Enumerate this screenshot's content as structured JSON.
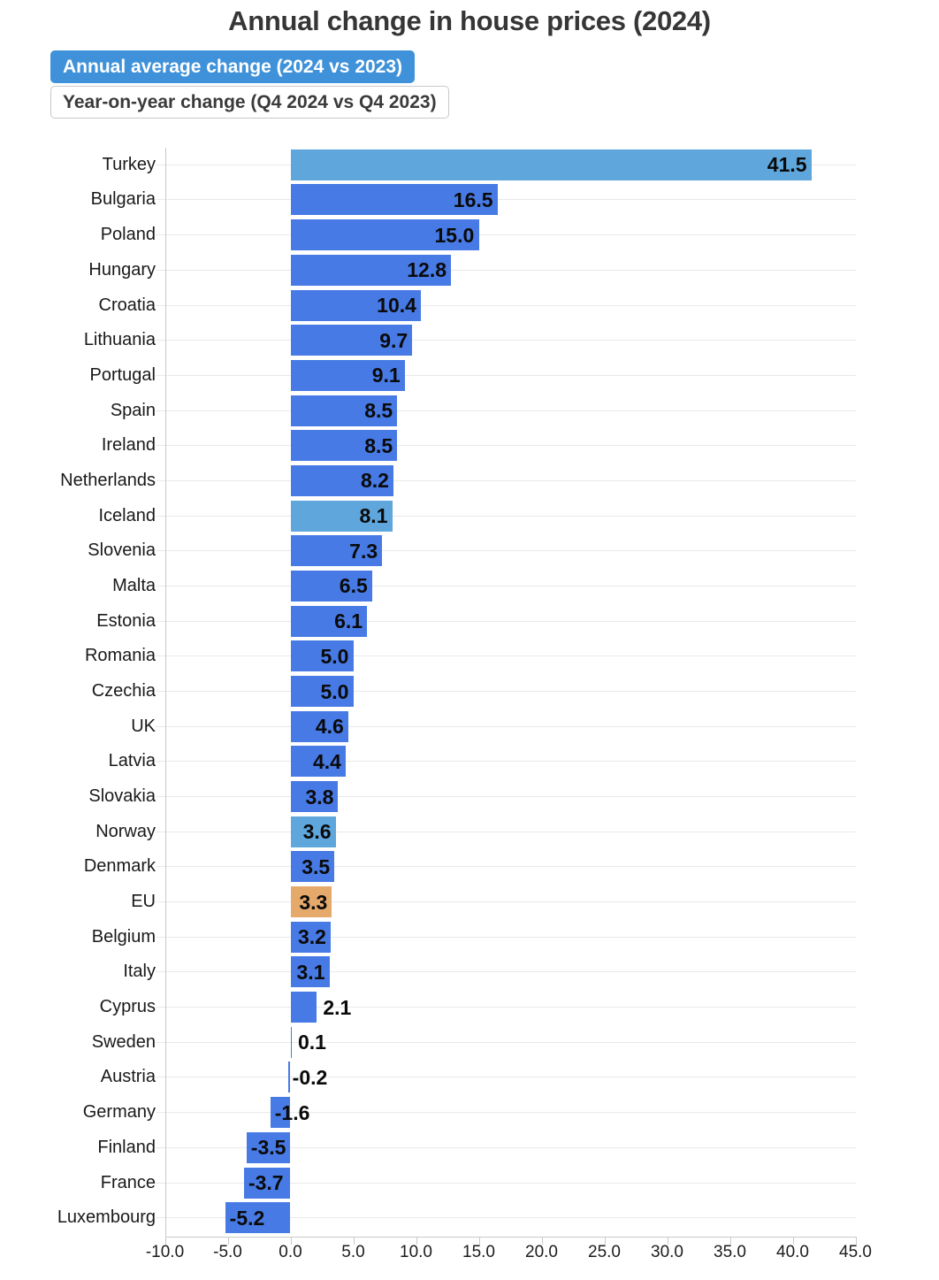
{
  "title": "Annual change in house prices (2024)",
  "legend": {
    "annual_average_label": "Annual average change (2024 vs 2023)",
    "year_on_year_label": "Year-on-year change (Q4 2024 vs Q4 2023)",
    "selected": "Annual average change (2024 vs 2023)"
  },
  "colors": {
    "bar_default": "#477ae5",
    "bar_light": "#5fa6dc",
    "bar_accent": "#e5a96c",
    "button_active_bg": "#3f92d9",
    "button_inactive_border": "#c9c9c9",
    "gridline": "#e9e9e9",
    "axis": "#c9c9c9",
    "value_label": "#0a0a0a",
    "category_label": "#191919",
    "title_text": "#363636"
  },
  "chart_data": {
    "type": "bar",
    "orientation": "horizontal",
    "title": "Annual change in house prices (2024)",
    "selected_series": "Annual average change (2024 vs 2023)",
    "legend_position": "top-left",
    "categories": [
      "Turkey",
      "Bulgaria",
      "Poland",
      "Hungary",
      "Croatia",
      "Lithuania",
      "Portugal",
      "Spain",
      "Ireland",
      "Netherlands",
      "Iceland",
      "Slovenia",
      "Malta",
      "Estonia",
      "Romania",
      "Czechia",
      "UK",
      "Latvia",
      "Slovakia",
      "Norway",
      "Denmark",
      "EU",
      "Belgium",
      "Italy",
      "Cyprus",
      "Sweden",
      "Austria",
      "Germany",
      "Finland",
      "France",
      "Luxembourg"
    ],
    "values": [
      41.5,
      16.5,
      15.0,
      12.8,
      10.4,
      9.7,
      9.1,
      8.5,
      8.5,
      8.2,
      8.1,
      7.3,
      6.5,
      6.1,
      5.0,
      5.0,
      4.6,
      4.4,
      3.8,
      3.6,
      3.5,
      3.3,
      3.2,
      3.1,
      2.1,
      0.1,
      -0.2,
      -1.6,
      -3.5,
      -3.7,
      -5.2
    ],
    "value_labels": [
      "41.5",
      "16.5",
      "15.0",
      "12.8",
      "10.4",
      "9.7",
      "9.1",
      "8.5",
      "8.5",
      "8.2",
      "8.1",
      "7.3",
      "6.5",
      "6.1",
      "5.0",
      "5.0",
      "4.6",
      "4.4",
      "3.8",
      "3.6",
      "3.5",
      "3.3",
      "3.2",
      "3.1",
      "2.1",
      "0.1",
      "-0.2",
      "-1.6",
      "-3.5",
      "-3.7",
      "-5.2"
    ],
    "bar_color_keys": [
      "light",
      "default",
      "default",
      "default",
      "default",
      "default",
      "default",
      "default",
      "default",
      "default",
      "light",
      "default",
      "default",
      "default",
      "default",
      "default",
      "default",
      "default",
      "default",
      "light",
      "default",
      "accent",
      "default",
      "default",
      "default",
      "default",
      "default",
      "default",
      "default",
      "default",
      "default"
    ],
    "xlim": [
      -10.0,
      45.0
    ],
    "x_tick_values": [
      -10.0,
      -5.0,
      0.0,
      5.0,
      10.0,
      15.0,
      20.0,
      25.0,
      30.0,
      35.0,
      40.0,
      45.0
    ],
    "x_tick_labels": [
      "-10.0",
      "-5.0",
      "0.0",
      "5.0",
      "10.0",
      "15.0",
      "20.0",
      "25.0",
      "30.0",
      "35.0",
      "40.0",
      "45.0"
    ],
    "grid": "horizontal row gridlines"
  }
}
